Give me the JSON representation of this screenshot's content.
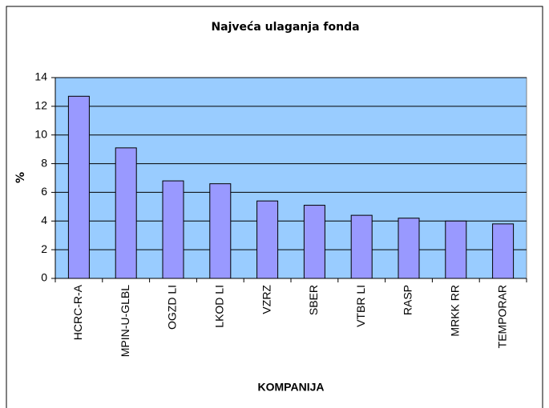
{
  "chart_data": {
    "type": "bar",
    "title": "Najveća ulaganja fonda",
    "categories": [
      "HCRC-R-A",
      "MPIN-U-GLBL",
      "OGZD LI",
      "LKOD LI",
      "VZRZ",
      "SBER",
      "VTBR LI",
      "RASP",
      "MRKK RR",
      "TEMPORAR"
    ],
    "values": [
      12.7,
      9.1,
      6.8,
      6.6,
      5.4,
      5.1,
      4.4,
      4.2,
      4.0,
      3.8
    ],
    "color": "#9999ff",
    "background": "#99ccff",
    "x_label": "KOMPANIJA",
    "y_label": "%",
    "ylim": [
      0,
      14
    ],
    "yticks": [
      0,
      2,
      4,
      6,
      8,
      10,
      12,
      14
    ],
    "grid": true
  }
}
